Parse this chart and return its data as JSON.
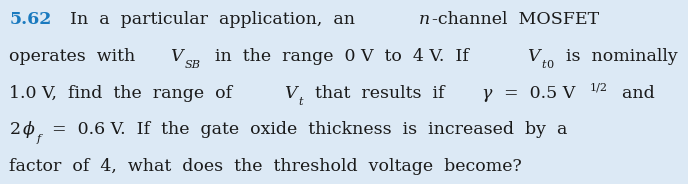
{
  "background_color": "#dce9f5",
  "number": "5.62",
  "number_color": "#1a7abf",
  "figsize": [
    6.88,
    1.84
  ],
  "dpi": 100,
  "text_color": "#1a1a1a",
  "font_size": 12.5,
  "line1_parts": [
    {
      "text": "5.62",
      "style": "bold",
      "color": "#1a7abf"
    },
    {
      "text": "  In  a  particular  application,  an ",
      "style": "normal"
    },
    {
      "text": "n",
      "style": "italic"
    },
    {
      "text": "-channel  MOSFET",
      "style": "normal"
    }
  ],
  "line2_parts": [
    {
      "text": "operates  with  ",
      "style": "normal"
    },
    {
      "text": "V",
      "style": "italic"
    },
    {
      "text": "SB",
      "style": "italic_sub"
    },
    {
      "text": "  in  the  range  0 V  to  4 V.  If  ",
      "style": "normal"
    },
    {
      "text": "V",
      "style": "italic"
    },
    {
      "text": "t0",
      "style": "italic_sub"
    },
    {
      "text": "  is  nominally",
      "style": "normal"
    }
  ],
  "line3_parts": [
    {
      "text": "1.0 V,  find  the  range  of  ",
      "style": "normal"
    },
    {
      "text": "V",
      "style": "italic"
    },
    {
      "text": "t",
      "style": "italic_sub"
    },
    {
      "text": "  that  results  if  ",
      "style": "normal"
    },
    {
      "text": "γ",
      "style": "italic"
    },
    {
      "text": "  =  0.5 V",
      "style": "normal"
    },
    {
      "text": "1/2",
      "style": "superscript"
    },
    {
      "text": "  and",
      "style": "normal"
    }
  ],
  "line4_parts": [
    {
      "text": "2",
      "style": "normal"
    },
    {
      "text": "ϕ",
      "style": "italic"
    },
    {
      "text": "f",
      "style": "italic_sub"
    },
    {
      "text": "  =  0.6 V.  If  the  gate  oxide  thickness  is  increased  by  a",
      "style": "normal"
    }
  ],
  "line5_parts": [
    {
      "text": "factor  of  4,  what  does  the  threshold  voltage  become?",
      "style": "normal"
    }
  ]
}
